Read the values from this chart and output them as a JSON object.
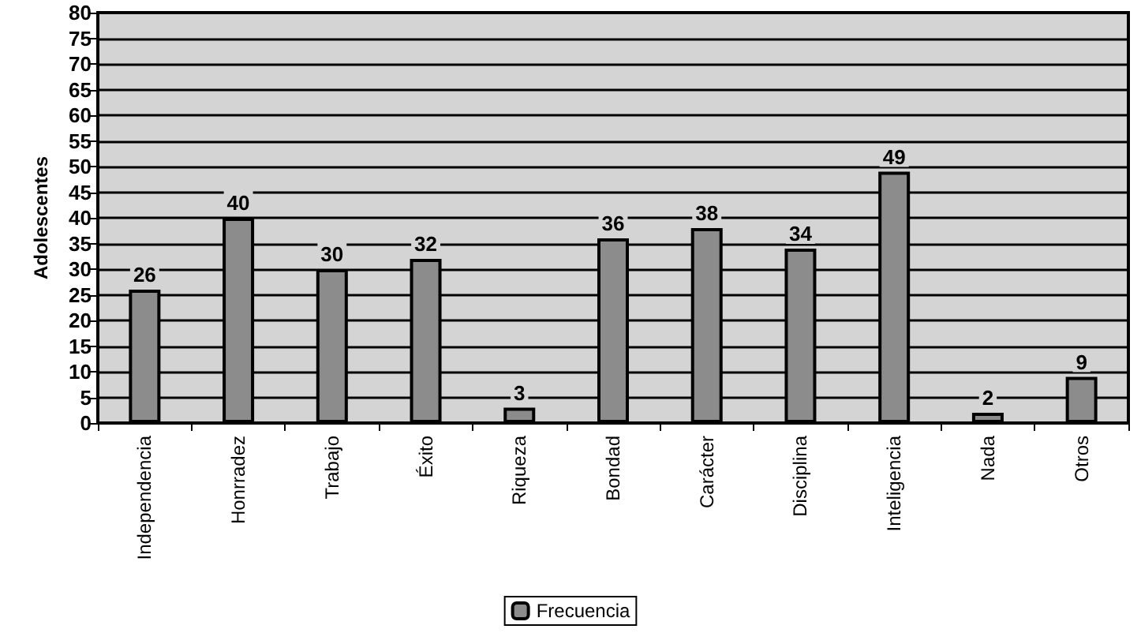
{
  "chart_data": {
    "type": "bar",
    "ylabel": "Adolescentes",
    "categories": [
      "Independencia",
      "Honrradez",
      "Trabajo",
      "Éxito",
      "Riqueza",
      "Bondad",
      "Carácter",
      "Disciplina",
      "Inteligencia",
      "Nada",
      "Otros"
    ],
    "series": [
      {
        "name": "Frecuencia",
        "color": "#8c8c8c",
        "values": [
          26,
          40,
          30,
          32,
          3,
          36,
          38,
          34,
          49,
          2,
          9
        ]
      }
    ],
    "ylim": [
      0,
      80
    ],
    "yticks": [
      0,
      5,
      10,
      15,
      20,
      25,
      30,
      35,
      40,
      45,
      50,
      55,
      60,
      65,
      70,
      75,
      80
    ],
    "grid": "y",
    "legend": "bottom",
    "data_labels": true
  }
}
